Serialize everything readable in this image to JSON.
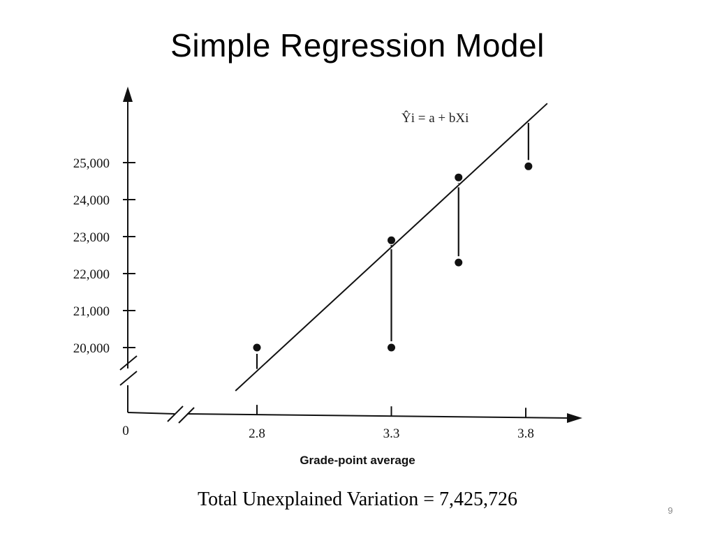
{
  "slide": {
    "title": "Simple Regression Model",
    "footnote": "Total Unexplained Variation =  7,425,726",
    "page_number": "9"
  },
  "chart_data": {
    "type": "scatter",
    "title": "",
    "xlabel": "Grade-point average",
    "ylabel": "",
    "equation": "Ŷi = a + bXi",
    "origin_label": "0",
    "x_ticks": [
      {
        "value": 2.8,
        "label": "2.8"
      },
      {
        "value": 3.3,
        "label": "3.3"
      },
      {
        "value": 3.8,
        "label": "3.8"
      }
    ],
    "y_ticks": [
      {
        "value": 20000,
        "label": "20,000"
      },
      {
        "value": 21000,
        "label": "21,000"
      },
      {
        "value": 22000,
        "label": "22,000"
      },
      {
        "value": 23000,
        "label": "23,000"
      },
      {
        "value": 24000,
        "label": "24,000"
      },
      {
        "value": 25000,
        "label": "25,000"
      }
    ],
    "xlim": [
      2.6,
      4.0
    ],
    "ylim": [
      18500,
      26800
    ],
    "points": [
      {
        "x": 2.8,
        "y": 20000
      },
      {
        "x": 3.3,
        "y": 22900
      },
      {
        "x": 3.3,
        "y": 20000
      },
      {
        "x": 3.55,
        "y": 24600
      },
      {
        "x": 3.55,
        "y": 22300
      },
      {
        "x": 3.81,
        "y": 24900
      }
    ],
    "regression_line": {
      "x_start": 2.72,
      "y_start": 18830,
      "x_end": 3.88,
      "y_end": 26600
    },
    "show_residuals": true,
    "axis_breaks": {
      "x": true,
      "y": true
    },
    "grid": false
  }
}
